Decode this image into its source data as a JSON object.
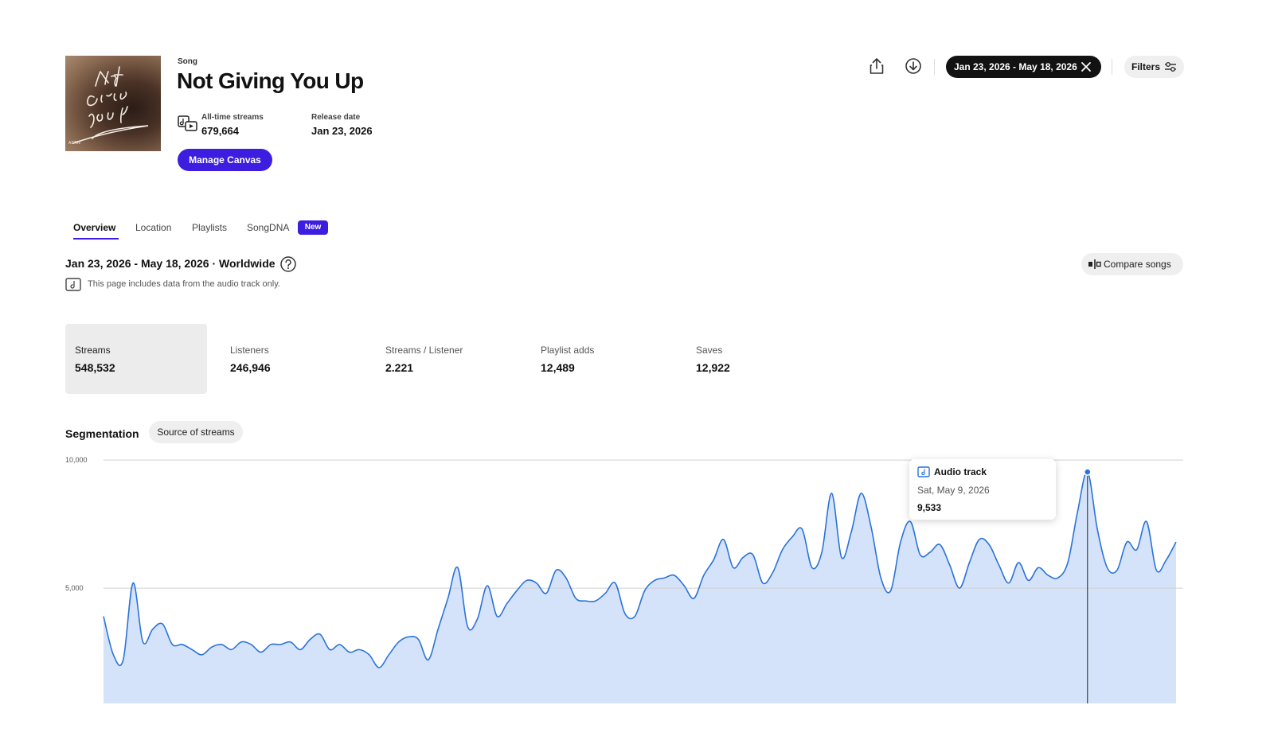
{
  "header": {
    "kind": "Song",
    "title": "Not Giving You Up",
    "all_time_streams_label": "All-time streams",
    "all_time_streams_value": "679,664",
    "release_date_label": "Release date",
    "release_date_value": "Jan 23, 2026",
    "manage_canvas_label": "Manage Canvas",
    "cover_art_artist": "ASTIN"
  },
  "toolbar": {
    "share_icon": "share-icon",
    "download_icon": "download-icon",
    "date_range": "Jan 23, 2026 - May 18, 2026",
    "filters_label": "Filters"
  },
  "tabs": [
    {
      "label": "Overview",
      "active": true
    },
    {
      "label": "Location",
      "active": false
    },
    {
      "label": "Playlists",
      "active": false
    },
    {
      "label": "SongDNA",
      "active": false
    }
  ],
  "new_badge": "New",
  "range_title": "Jan 23, 2026 - May 18, 2026 · Worldwide",
  "note": "This page includes data from the audio track only.",
  "compare_label": "Compare songs",
  "metrics": [
    {
      "label": "Streams",
      "value": "548,532",
      "active": true
    },
    {
      "label": "Listeners",
      "value": "246,946",
      "active": false
    },
    {
      "label": "Streams / Listener",
      "value": "2.221",
      "active": false
    },
    {
      "label": "Playlist adds",
      "value": "12,489",
      "active": false
    },
    {
      "label": "Saves",
      "value": "12,922",
      "active": false
    }
  ],
  "segmentation": {
    "label": "Segmentation",
    "chip": "Source of streams"
  },
  "tooltip": {
    "series": "Audio track",
    "date": "Sat, May 9, 2026",
    "value": "9,533"
  },
  "colors": {
    "accent": "#3d1ee0",
    "area_fill": "#d5e3fa",
    "line": "#2a73d9"
  },
  "chart_data": {
    "type": "area",
    "ylabel_ticks": [
      "10,000",
      "5,000"
    ],
    "yticks": [
      10000,
      5000
    ],
    "ylim": [
      500,
      10500
    ],
    "x_start": "2026-01-23",
    "x_end": "2026-05-18",
    "highlight": {
      "date": "2026-05-09",
      "value": 9533
    },
    "series": [
      {
        "values": [
          3900,
          2400,
          2200,
          5200,
          2900,
          3400,
          3600,
          2800,
          2800,
          2600,
          2400,
          2700,
          2800,
          2600,
          2900,
          2800,
          2500,
          2800,
          2800,
          2900,
          2600,
          3000,
          3200,
          2600,
          2800,
          2500,
          2600,
          2400,
          1900,
          2400,
          2900,
          3100,
          3000,
          2200,
          3400,
          4600,
          5800,
          3500,
          3800,
          5100,
          3900,
          4400,
          4900,
          5300,
          5200,
          4800,
          5700,
          5400,
          4600,
          4500,
          4500,
          4800,
          5200,
          4000,
          3900,
          4900,
          5300,
          5400,
          5500,
          5100,
          4600,
          5500,
          6100,
          6900,
          5800,
          6200,
          6300,
          5200,
          5600,
          6500,
          7000,
          7300,
          5800,
          6400,
          8700,
          6200,
          7200,
          8700,
          7400,
          5400,
          4900,
          6800,
          7600,
          6300,
          6400,
          6700,
          5900,
          5000,
          6000,
          6900,
          6700,
          5900,
          5200,
          6000,
          5300,
          5800,
          5500,
          5400,
          6000,
          8000,
          9533,
          7300,
          5800,
          5700,
          6800,
          6500,
          7600,
          5700,
          6100,
          6800
        ]
      }
    ]
  }
}
